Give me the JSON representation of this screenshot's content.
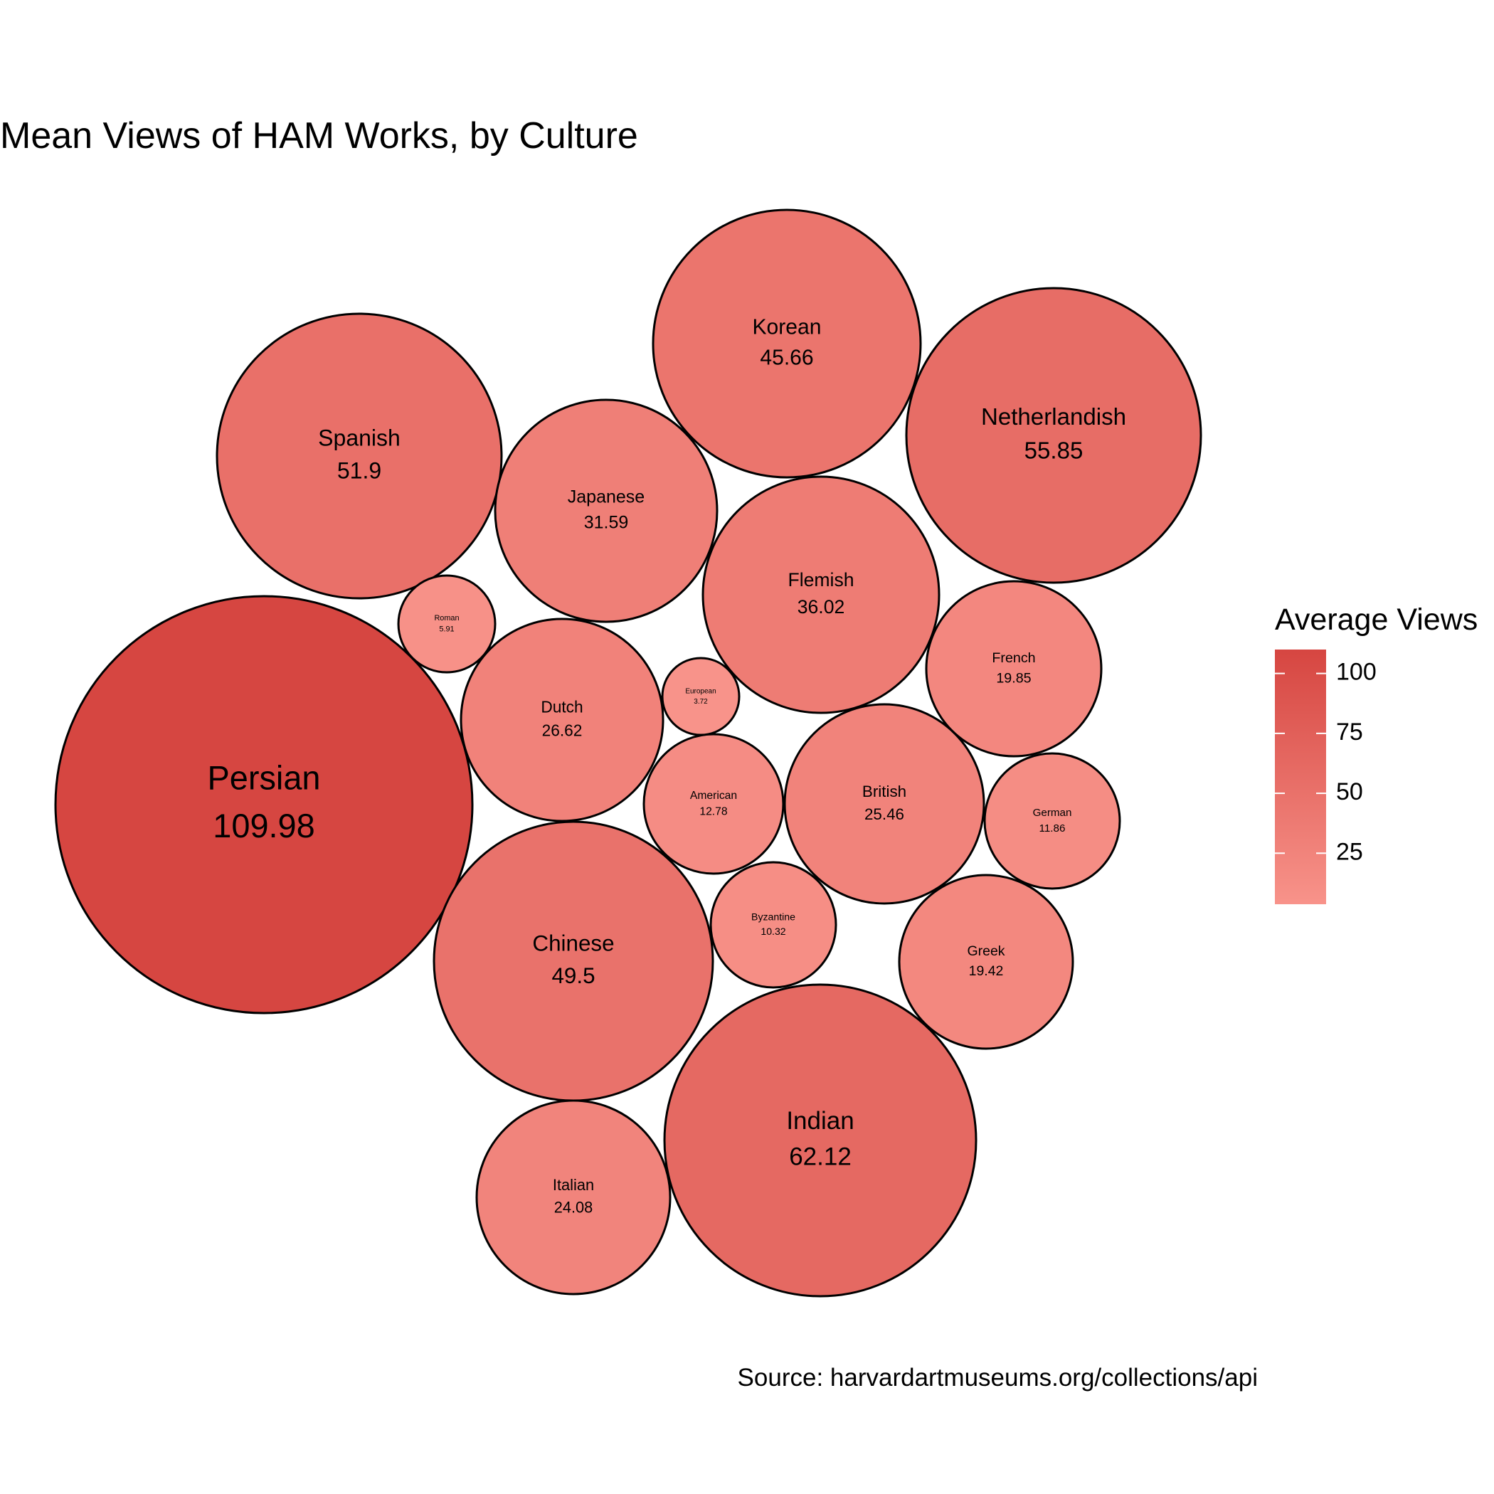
{
  "chart_data": {
    "type": "bubble",
    "title": "Mean Views of HAM Works, by Culture",
    "caption": "Source: harvardartmuseums.org/collections/api",
    "legend": {
      "title": "Average Views",
      "placement": "right",
      "ticks": [
        100,
        75,
        50,
        25
      ],
      "range": [
        3.72,
        109.98
      ],
      "color_low": "#F8938A",
      "color_high": "#D64641"
    },
    "label_color": "#000000",
    "outline_color": "#000000",
    "points": [
      {
        "label": "Persian",
        "value": 109.98
      },
      {
        "label": "Indian",
        "value": 62.12
      },
      {
        "label": "Netherlandish",
        "value": 55.85
      },
      {
        "label": "Spanish",
        "value": 51.9
      },
      {
        "label": "Chinese",
        "value": 49.5
      },
      {
        "label": "Korean",
        "value": 45.66
      },
      {
        "label": "Flemish",
        "value": 36.02
      },
      {
        "label": "Japanese",
        "value": 31.59
      },
      {
        "label": "Dutch",
        "value": 26.62
      },
      {
        "label": "British",
        "value": 25.46
      },
      {
        "label": "Italian",
        "value": 24.08
      },
      {
        "label": "French",
        "value": 19.85
      },
      {
        "label": "Greek",
        "value": 19.42
      },
      {
        "label": "American",
        "value": 12.78
      },
      {
        "label": "German",
        "value": 11.86
      },
      {
        "label": "Byzantine",
        "value": 10.32
      },
      {
        "label": "Roman",
        "value": 5.91
      },
      {
        "label": "European",
        "value": 3.72
      }
    ]
  }
}
